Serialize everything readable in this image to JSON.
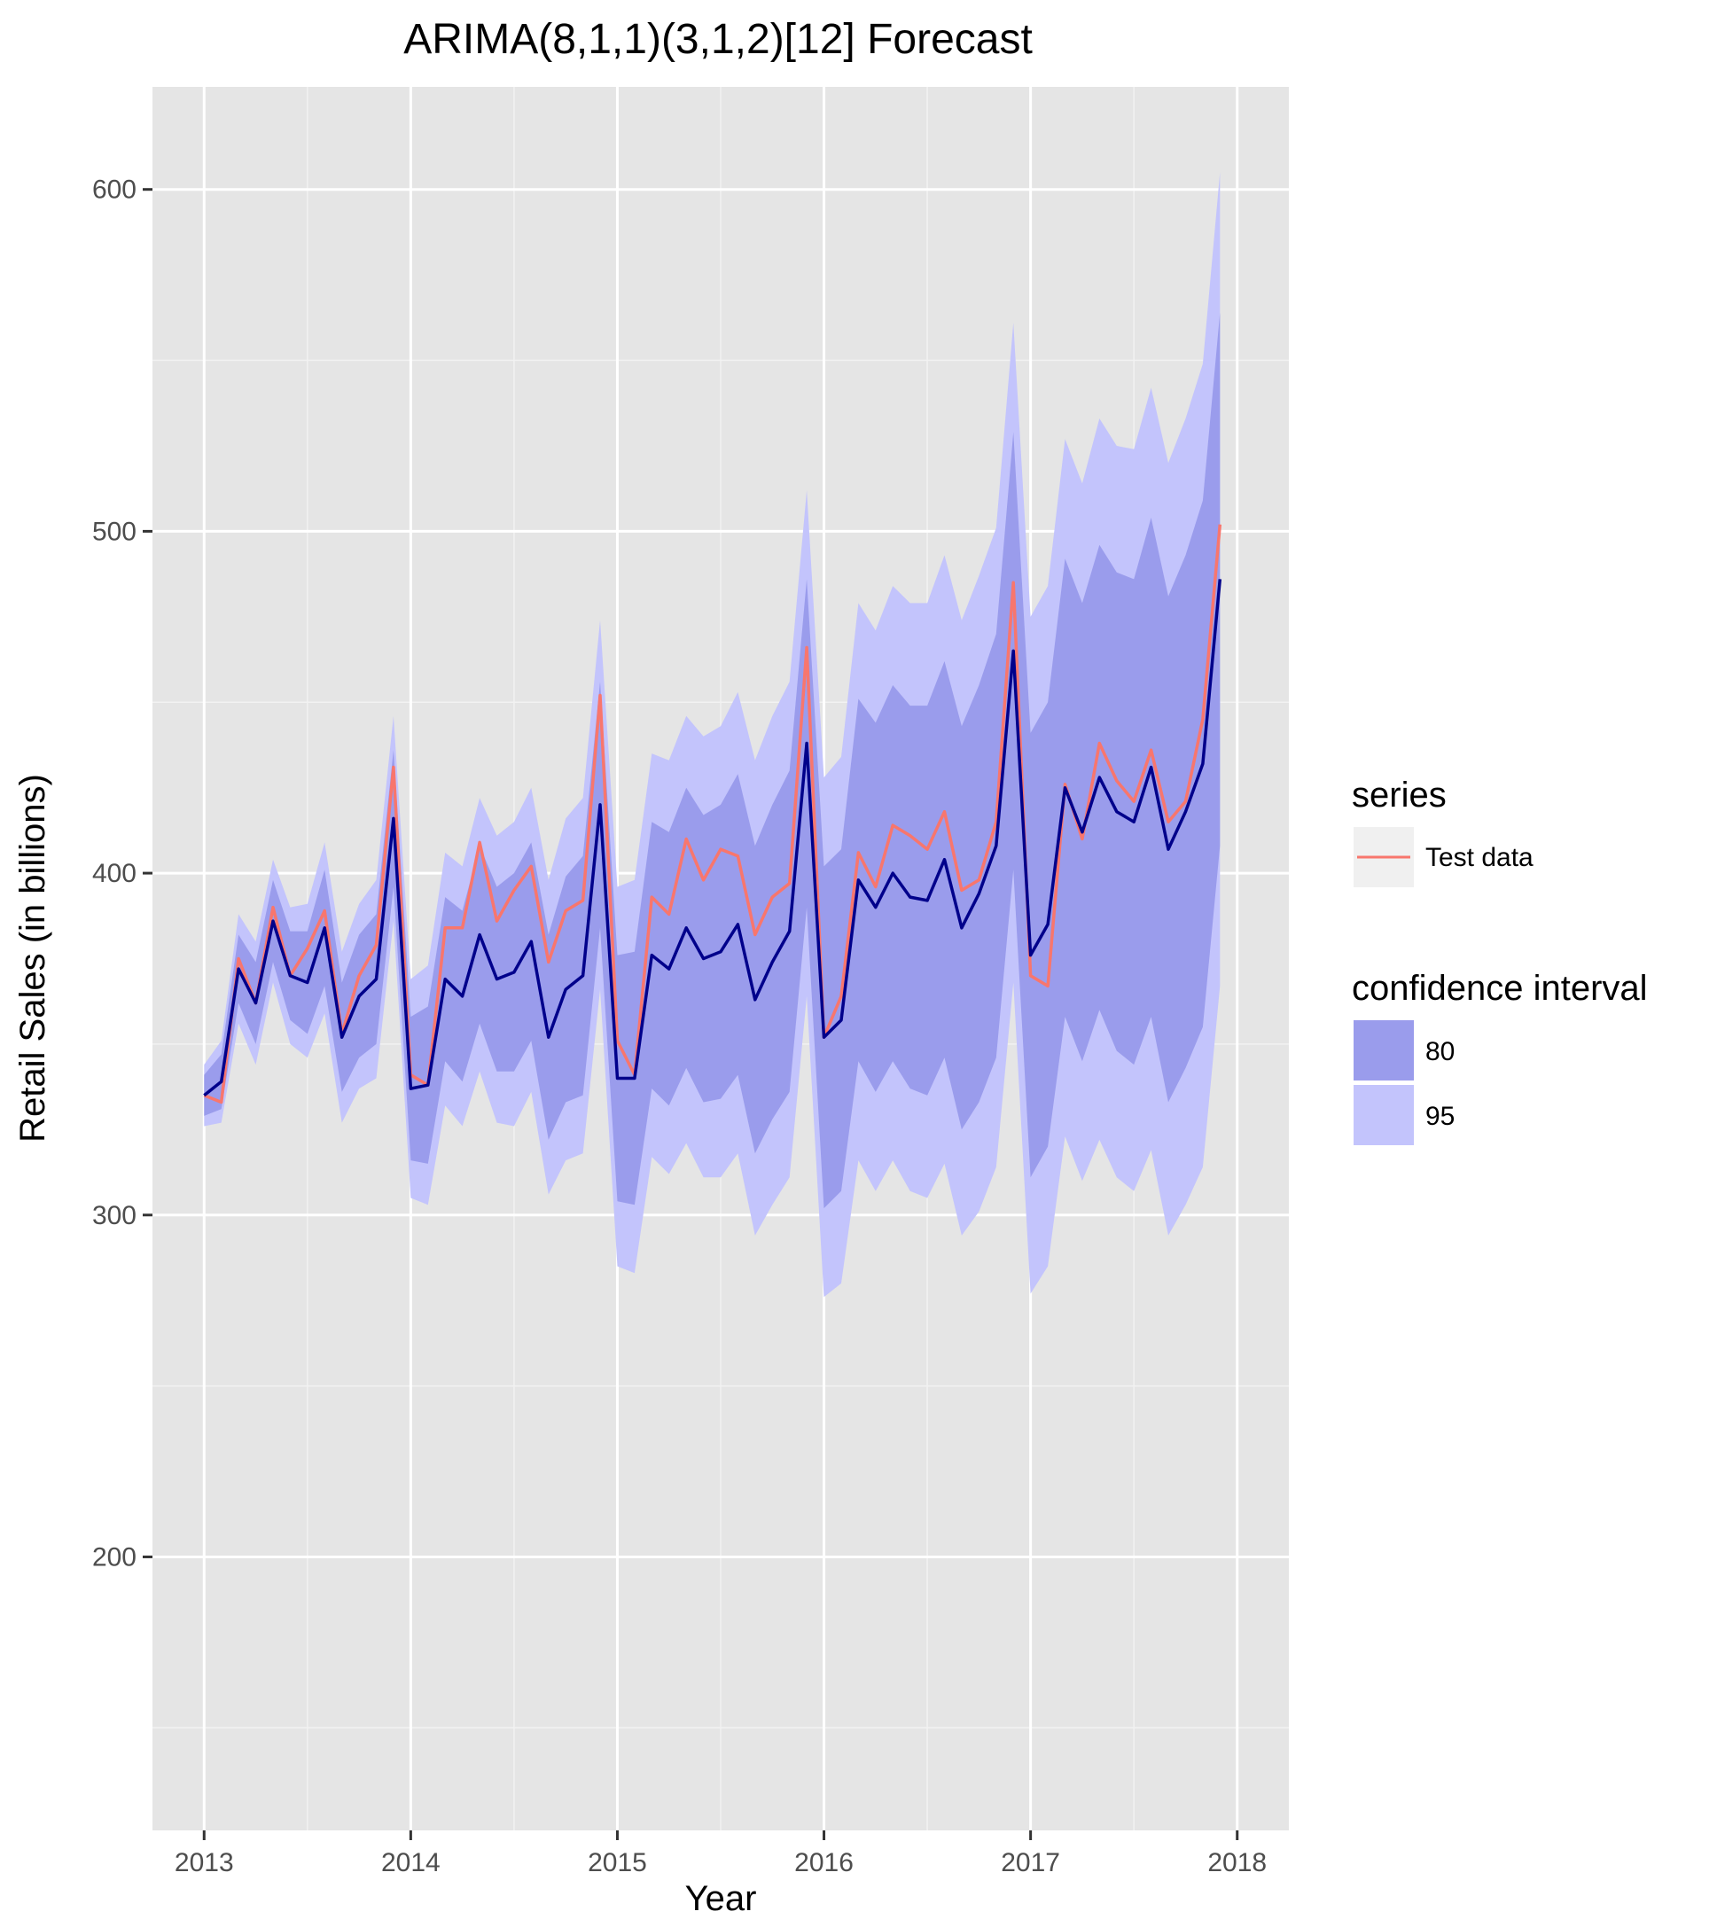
{
  "chart_data": {
    "type": "line",
    "title": "ARIMA(8,1,1)(3,1,2)[12] Forecast",
    "xlabel": "Year",
    "ylabel": "Retail Sales (in billions)",
    "xlim": [
      2012.75,
      2018.25
    ],
    "ylim": [
      120,
      630
    ],
    "x_ticks": [
      2013,
      2014,
      2015,
      2016,
      2017,
      2018
    ],
    "x_tick_labels": [
      "2013",
      "2014",
      "2015",
      "2016",
      "2017",
      "2018"
    ],
    "y_ticks": [
      200,
      300,
      400,
      500,
      600
    ],
    "y_tick_labels": [
      "200",
      "300",
      "400",
      "500",
      "600"
    ],
    "grid": true,
    "legend_position": "right",
    "x_start": 2013,
    "x_step_months": 1,
    "series": [
      {
        "name": "Test data",
        "color": "#f8766d",
        "values": [
          335,
          333,
          375,
          362,
          390,
          370,
          378,
          389,
          353,
          370,
          379,
          431,
          341,
          338,
          384,
          384,
          409,
          386,
          395,
          402,
          374,
          389,
          392,
          452,
          351,
          341,
          393,
          388,
          410,
          398,
          407,
          405,
          382,
          393,
          397,
          466,
          352,
          364,
          406,
          396,
          414,
          411,
          407,
          418,
          395,
          398,
          415,
          485,
          370,
          367,
          426,
          410,
          438,
          427,
          421,
          436,
          415,
          421,
          445,
          502
        ]
      },
      {
        "name": "",
        "color": "#00008b",
        "values": [
          335,
          339,
          372,
          362,
          386,
          370,
          368,
          384,
          352,
          364,
          369,
          416,
          337,
          338,
          369,
          364,
          382,
          369,
          371,
          380,
          352,
          366,
          370,
          420,
          340,
          340,
          376,
          372,
          384,
          375,
          377,
          385,
          363,
          374,
          383,
          438,
          352,
          357,
          398,
          390,
          400,
          393,
          392,
          404,
          384,
          394,
          408,
          465,
          376,
          385,
          425,
          412,
          428,
          418,
          415,
          431,
          407,
          418,
          432,
          486
        ]
      }
    ],
    "bands": [
      {
        "name": "80",
        "color": "#9a9cec",
        "lower": [
          329,
          331,
          362,
          350,
          374,
          357,
          353,
          367,
          336,
          346,
          350,
          396,
          316,
          315,
          345,
          339,
          356,
          342,
          342,
          351,
          322,
          333,
          335,
          384,
          304,
          303,
          337,
          332,
          343,
          333,
          334,
          341,
          318,
          328,
          336,
          390,
          302,
          307,
          345,
          336,
          345,
          337,
          335,
          346,
          325,
          333,
          346,
          401,
          311,
          320,
          358,
          345,
          360,
          348,
          344,
          358,
          333,
          343,
          355,
          408
        ],
        "upper": [
          341,
          347,
          382,
          374,
          398,
          383,
          383,
          401,
          368,
          382,
          388,
          436,
          358,
          361,
          393,
          389,
          408,
          396,
          400,
          409,
          382,
          399,
          405,
          456,
          376,
          377,
          415,
          412,
          425,
          417,
          420,
          429,
          408,
          420,
          430,
          486,
          402,
          407,
          451,
          444,
          455,
          449,
          449,
          462,
          443,
          455,
          470,
          529,
          441,
          450,
          492,
          479,
          496,
          488,
          486,
          504,
          481,
          493,
          509,
          564
        ]
      },
      {
        "name": "95",
        "color": "#c3c4fc",
        "lower": [
          326,
          327,
          356,
          344,
          368,
          350,
          346,
          359,
          327,
          337,
          340,
          386,
          305,
          303,
          332,
          326,
          342,
          327,
          326,
          336,
          306,
          316,
          318,
          366,
          285,
          283,
          317,
          312,
          321,
          311,
          311,
          318,
          294,
          303,
          311,
          364,
          276,
          280,
          316,
          307,
          316,
          307,
          305,
          315,
          294,
          301,
          314,
          368,
          277,
          285,
          323,
          310,
          322,
          311,
          307,
          319,
          294,
          303,
          314,
          367
        ],
        "upper": [
          344,
          351,
          388,
          380,
          404,
          390,
          391,
          409,
          377,
          391,
          398,
          446,
          369,
          373,
          406,
          402,
          422,
          411,
          415,
          425,
          398,
          416,
          422,
          474,
          396,
          398,
          435,
          433,
          446,
          440,
          443,
          453,
          433,
          446,
          456,
          512,
          428,
          434,
          479,
          471,
          484,
          479,
          479,
          493,
          474,
          487,
          501,
          561,
          475,
          484,
          527,
          514,
          533,
          525,
          524,
          542,
          520,
          533,
          549,
          605
        ]
      }
    ]
  },
  "legend": {
    "series_title": "series",
    "series_item": "Test data",
    "ci_title": "confidence interval",
    "ci_items": [
      "80",
      "95"
    ]
  },
  "colors": {
    "panel_background": "#e5e5e5",
    "grid_major": "#ffffff",
    "grid_minor": "#f2f2f2",
    "legend_key_background": "#f0f0f0"
  }
}
